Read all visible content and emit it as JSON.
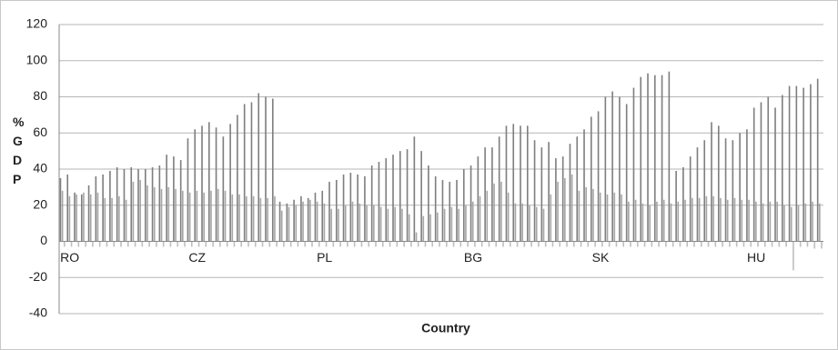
{
  "chart_data": {
    "type": "bar",
    "x_label": "Country",
    "y_label": "% GDP",
    "categories": [
      null,
      "RO",
      null,
      null,
      null,
      null,
      null,
      null,
      null,
      null,
      null,
      null,
      null,
      null,
      null,
      null,
      null,
      null,
      null,
      "CZ",
      null,
      null,
      null,
      null,
      null,
      null,
      null,
      null,
      null,
      null,
      null,
      null,
      null,
      null,
      null,
      null,
      null,
      "PL",
      null,
      null,
      null,
      null,
      null,
      null,
      null,
      null,
      null,
      null,
      null,
      null,
      null,
      null,
      null,
      null,
      null,
      null,
      null,
      null,
      "BG",
      null,
      null,
      null,
      null,
      null,
      null,
      null,
      null,
      null,
      null,
      null,
      null,
      null,
      null,
      null,
      null,
      null,
      "SK",
      null,
      null,
      null,
      null,
      null,
      null,
      null,
      null,
      null,
      null,
      null,
      null,
      null,
      null,
      null,
      null,
      null,
      null,
      null,
      null,
      null,
      "HU",
      null,
      null,
      null,
      null,
      null,
      null,
      null,
      null,
      null
    ],
    "series": [
      {
        "color": "#7f7f7f",
        "values": [
          35,
          37,
          27,
          26,
          31,
          36,
          37,
          39,
          41,
          40,
          41,
          40,
          40,
          41,
          42,
          48,
          47,
          45,
          57,
          62,
          64,
          66,
          63,
          58,
          65,
          70,
          76,
          77,
          82,
          80,
          79,
          22,
          21,
          23,
          25,
          24,
          27,
          28,
          33,
          34,
          37,
          38,
          37,
          36,
          42,
          44,
          46,
          48,
          50,
          51,
          58,
          50,
          42,
          36,
          34,
          33,
          34,
          40,
          42,
          47,
          52,
          52,
          58,
          64,
          65,
          64,
          64,
          56,
          52,
          55,
          46,
          47,
          54,
          58,
          62,
          69,
          72,
          80,
          83,
          80,
          76,
          85,
          91,
          93,
          92,
          92,
          94,
          39,
          41,
          47,
          52,
          56,
          66,
          64,
          57,
          56,
          60,
          62,
          74,
          77,
          80,
          74,
          81,
          86,
          86,
          85,
          87,
          90
        ]
      },
      {
        "color": "#a6a6a6",
        "values": [
          28,
          25,
          26,
          27,
          26,
          27,
          24,
          24,
          25,
          23,
          33,
          34,
          31,
          30,
          29,
          30,
          29,
          28,
          27,
          28,
          27,
          28,
          29,
          28,
          26,
          26,
          25,
          25,
          24,
          24,
          25,
          17,
          19,
          20,
          22,
          23,
          22,
          21,
          18,
          18,
          20,
          22,
          21,
          20,
          20,
          19,
          18,
          19,
          18,
          15,
          5,
          14,
          15,
          16,
          18,
          19,
          18,
          20,
          22,
          25,
          28,
          32,
          33,
          27,
          21,
          21,
          20,
          19,
          18,
          26,
          33,
          35,
          37,
          28,
          30,
          29,
          27,
          26,
          27,
          26,
          22,
          23,
          21,
          20,
          22,
          23,
          21,
          22,
          23,
          24,
          24,
          25,
          25,
          24,
          23,
          24,
          23,
          23,
          22,
          21,
          22,
          22,
          20,
          19,
          20,
          21,
          22,
          21
        ]
      },
      {
        "color": "#bfbfbf",
        "values": [
          -3,
          -3,
          -3,
          -3,
          -3,
          -3,
          -3,
          -3,
          -3,
          -3,
          -3,
          -3,
          -3,
          -3,
          -3,
          -3,
          -3,
          -3,
          -3,
          -3,
          -3,
          -3,
          -3,
          -3,
          -3,
          -3,
          -3,
          -3,
          -3,
          -3,
          -3,
          -3,
          -3,
          -3,
          -3,
          -3,
          -3,
          -3,
          -3,
          -3,
          -3,
          -3,
          -3,
          -3,
          -3,
          -3,
          -3,
          -3,
          -3,
          -3,
          -3,
          -3,
          -3,
          -3,
          -3,
          -3,
          -3,
          -3,
          -3,
          -3,
          -3,
          -3,
          -3,
          -3,
          -3,
          -3,
          -3,
          -3,
          -3,
          -3,
          -3,
          -3,
          -3,
          -3,
          -3,
          -3,
          -3,
          -3,
          -3,
          -3,
          -3,
          -3,
          -3,
          -3,
          -3,
          -3,
          -3,
          -3,
          -3,
          -3,
          -3,
          -3,
          -3,
          -3,
          -3,
          -3,
          -3,
          -3,
          -3,
          -3,
          -3,
          -3,
          -3,
          -16,
          -3,
          -3,
          -4,
          -4
        ]
      }
    ],
    "ylim": [
      -40,
      120
    ],
    "yticks": [
      -40,
      -20,
      0,
      20,
      40,
      60,
      80,
      100,
      120
    ],
    "grid": true
  }
}
